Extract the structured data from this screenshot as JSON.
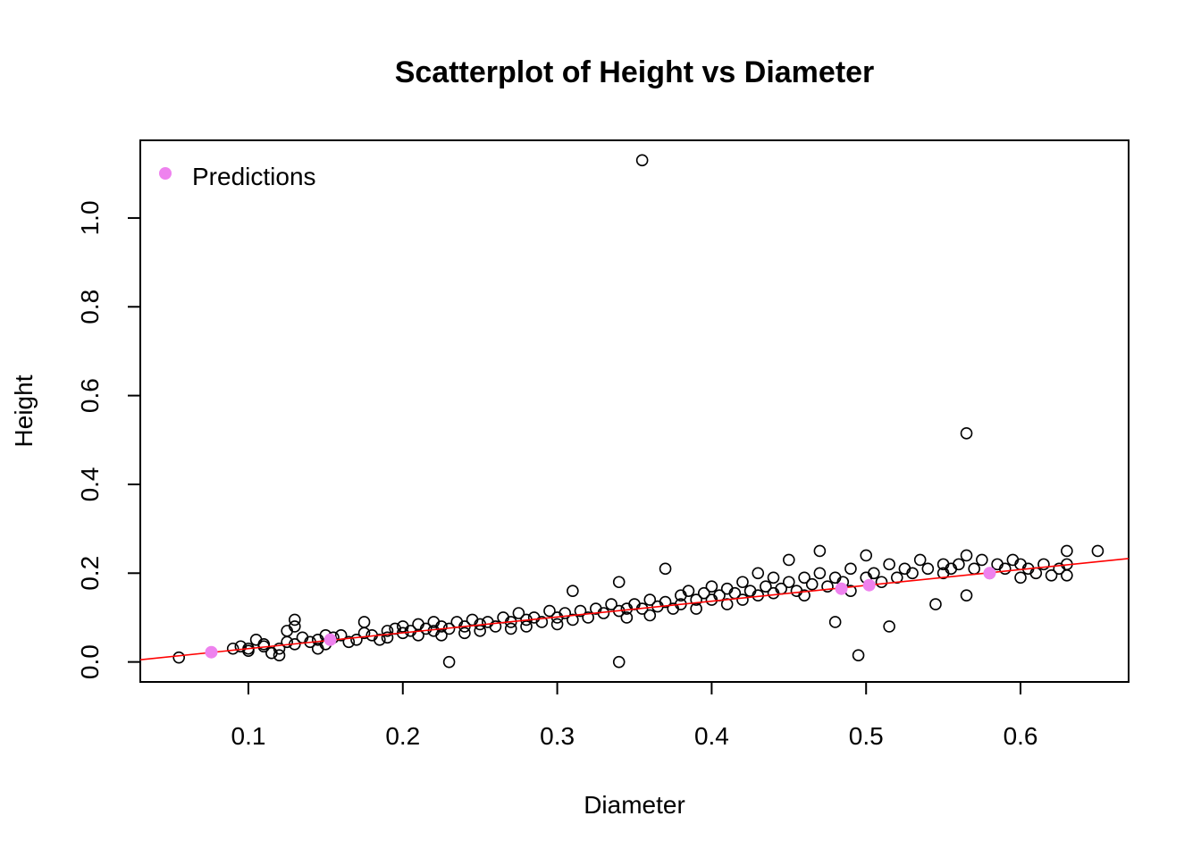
{
  "chart_data": {
    "type": "scatter",
    "title": "Scatterplot of Height vs Diameter",
    "xlabel": "Diameter",
    "ylabel": "Height",
    "xlim": [
      0.03,
      0.67
    ],
    "ylim": [
      -0.045,
      1.175
    ],
    "x_ticks": [
      0.1,
      0.2,
      0.3,
      0.4,
      0.5,
      0.6
    ],
    "x_tick_labels": [
      "0.1",
      "0.2",
      "0.3",
      "0.4",
      "0.5",
      "0.6"
    ],
    "y_ticks": [
      0.0,
      0.2,
      0.4,
      0.6,
      0.8,
      1.0
    ],
    "y_tick_labels": [
      "0.0",
      "0.2",
      "0.4",
      "0.6",
      "0.8",
      "1.0"
    ],
    "grid": false,
    "legend": {
      "position": "top-left",
      "entries": [
        {
          "label": "Predictions",
          "color": "#EE82EE"
        }
      ]
    },
    "regression_line": {
      "color": "#FF0000",
      "points": [
        [
          0.03,
          0.005
        ],
        [
          0.67,
          0.233
        ]
      ]
    },
    "series": [
      {
        "style": "open-circle",
        "color": "#000000",
        "points": [
          [
            0.055,
            0.01
          ],
          [
            0.09,
            0.03
          ],
          [
            0.095,
            0.035
          ],
          [
            0.1,
            0.03
          ],
          [
            0.1,
            0.025
          ],
          [
            0.105,
            0.05
          ],
          [
            0.11,
            0.035
          ],
          [
            0.11,
            0.04
          ],
          [
            0.115,
            0.02
          ],
          [
            0.12,
            0.03
          ],
          [
            0.12,
            0.015
          ],
          [
            0.125,
            0.045
          ],
          [
            0.125,
            0.07
          ],
          [
            0.13,
            0.04
          ],
          [
            0.13,
            0.095
          ],
          [
            0.13,
            0.08
          ],
          [
            0.135,
            0.055
          ],
          [
            0.14,
            0.045
          ],
          [
            0.145,
            0.05
          ],
          [
            0.145,
            0.03
          ],
          [
            0.15,
            0.06
          ],
          [
            0.15,
            0.04
          ],
          [
            0.155,
            0.055
          ],
          [
            0.16,
            0.06
          ],
          [
            0.165,
            0.045
          ],
          [
            0.17,
            0.05
          ],
          [
            0.175,
            0.065
          ],
          [
            0.175,
            0.09
          ],
          [
            0.18,
            0.06
          ],
          [
            0.185,
            0.05
          ],
          [
            0.19,
            0.07
          ],
          [
            0.19,
            0.055
          ],
          [
            0.195,
            0.075
          ],
          [
            0.2,
            0.065
          ],
          [
            0.2,
            0.08
          ],
          [
            0.205,
            0.07
          ],
          [
            0.21,
            0.06
          ],
          [
            0.21,
            0.085
          ],
          [
            0.215,
            0.075
          ],
          [
            0.22,
            0.07
          ],
          [
            0.22,
            0.09
          ],
          [
            0.225,
            0.08
          ],
          [
            0.225,
            0.06
          ],
          [
            0.23,
            0.075
          ],
          [
            0.23,
            0.0
          ],
          [
            0.235,
            0.09
          ],
          [
            0.24,
            0.08
          ],
          [
            0.24,
            0.065
          ],
          [
            0.245,
            0.095
          ],
          [
            0.25,
            0.085
          ],
          [
            0.25,
            0.07
          ],
          [
            0.255,
            0.09
          ],
          [
            0.26,
            0.08
          ],
          [
            0.265,
            0.1
          ],
          [
            0.27,
            0.09
          ],
          [
            0.27,
            0.075
          ],
          [
            0.275,
            0.11
          ],
          [
            0.28,
            0.095
          ],
          [
            0.28,
            0.08
          ],
          [
            0.285,
            0.1
          ],
          [
            0.29,
            0.09
          ],
          [
            0.295,
            0.115
          ],
          [
            0.3,
            0.1
          ],
          [
            0.3,
            0.085
          ],
          [
            0.305,
            0.11
          ],
          [
            0.31,
            0.16
          ],
          [
            0.31,
            0.095
          ],
          [
            0.315,
            0.115
          ],
          [
            0.32,
            0.1
          ],
          [
            0.325,
            0.12
          ],
          [
            0.33,
            0.11
          ],
          [
            0.335,
            0.13
          ],
          [
            0.34,
            0.115
          ],
          [
            0.34,
            0.0
          ],
          [
            0.34,
            0.18
          ],
          [
            0.345,
            0.1
          ],
          [
            0.345,
            0.12
          ],
          [
            0.35,
            0.13
          ],
          [
            0.355,
            1.13
          ],
          [
            0.355,
            0.12
          ],
          [
            0.36,
            0.14
          ],
          [
            0.36,
            0.105
          ],
          [
            0.365,
            0.125
          ],
          [
            0.37,
            0.21
          ],
          [
            0.37,
            0.135
          ],
          [
            0.375,
            0.12
          ],
          [
            0.38,
            0.15
          ],
          [
            0.38,
            0.13
          ],
          [
            0.385,
            0.16
          ],
          [
            0.39,
            0.14
          ],
          [
            0.39,
            0.12
          ],
          [
            0.395,
            0.155
          ],
          [
            0.4,
            0.14
          ],
          [
            0.4,
            0.17
          ],
          [
            0.405,
            0.15
          ],
          [
            0.41,
            0.13
          ],
          [
            0.41,
            0.165
          ],
          [
            0.415,
            0.155
          ],
          [
            0.42,
            0.14
          ],
          [
            0.42,
            0.18
          ],
          [
            0.425,
            0.16
          ],
          [
            0.43,
            0.15
          ],
          [
            0.43,
            0.2
          ],
          [
            0.435,
            0.17
          ],
          [
            0.44,
            0.155
          ],
          [
            0.44,
            0.19
          ],
          [
            0.445,
            0.165
          ],
          [
            0.45,
            0.18
          ],
          [
            0.45,
            0.23
          ],
          [
            0.455,
            0.16
          ],
          [
            0.46,
            0.19
          ],
          [
            0.46,
            0.15
          ],
          [
            0.465,
            0.175
          ],
          [
            0.47,
            0.25
          ],
          [
            0.47,
            0.2
          ],
          [
            0.475,
            0.17
          ],
          [
            0.48,
            0.19
          ],
          [
            0.48,
            0.09
          ],
          [
            0.485,
            0.18
          ],
          [
            0.49,
            0.21
          ],
          [
            0.49,
            0.16
          ],
          [
            0.495,
            0.015
          ],
          [
            0.5,
            0.19
          ],
          [
            0.5,
            0.24
          ],
          [
            0.505,
            0.2
          ],
          [
            0.51,
            0.18
          ],
          [
            0.515,
            0.22
          ],
          [
            0.515,
            0.08
          ],
          [
            0.52,
            0.19
          ],
          [
            0.525,
            0.21
          ],
          [
            0.53,
            0.2
          ],
          [
            0.535,
            0.23
          ],
          [
            0.54,
            0.21
          ],
          [
            0.545,
            0.13
          ],
          [
            0.55,
            0.22
          ],
          [
            0.55,
            0.2
          ],
          [
            0.555,
            0.21
          ],
          [
            0.56,
            0.22
          ],
          [
            0.565,
            0.515
          ],
          [
            0.565,
            0.24
          ],
          [
            0.565,
            0.15
          ],
          [
            0.57,
            0.21
          ],
          [
            0.575,
            0.23
          ],
          [
            0.58,
            0.2
          ],
          [
            0.585,
            0.22
          ],
          [
            0.59,
            0.21
          ],
          [
            0.595,
            0.23
          ],
          [
            0.6,
            0.22
          ],
          [
            0.6,
            0.19
          ],
          [
            0.605,
            0.21
          ],
          [
            0.61,
            0.2
          ],
          [
            0.615,
            0.22
          ],
          [
            0.62,
            0.195
          ],
          [
            0.625,
            0.21
          ],
          [
            0.63,
            0.25
          ],
          [
            0.63,
            0.22
          ],
          [
            0.63,
            0.195
          ],
          [
            0.65,
            0.25
          ]
        ]
      },
      {
        "name": "Predictions",
        "style": "filled-circle",
        "color": "#EE82EE",
        "points": [
          [
            0.076,
            0.022
          ],
          [
            0.153,
            0.05
          ],
          [
            0.484,
            0.165
          ],
          [
            0.502,
            0.173
          ],
          [
            0.58,
            0.2
          ]
        ]
      }
    ]
  }
}
